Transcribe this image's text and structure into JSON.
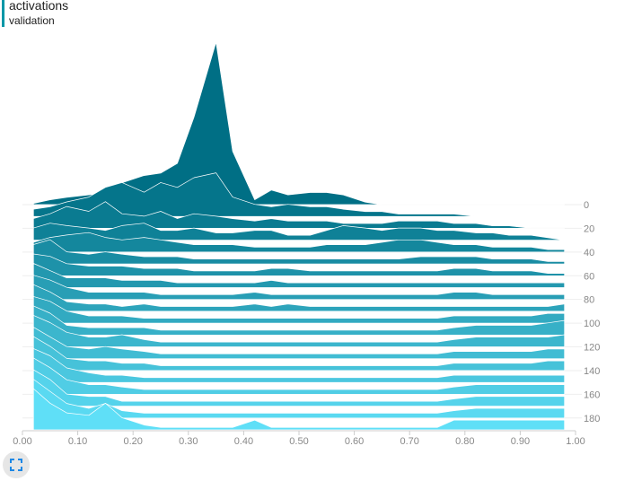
{
  "header": {
    "title": "activations",
    "subtitle": "validation"
  },
  "icons": {
    "expand": "fullscreen-icon"
  },
  "colors": {
    "back_series": "#006f85",
    "front_series": "#5fdff7",
    "outline": "#ffffff",
    "axis_label": "#888888",
    "header_bar": "#0097a7"
  },
  "chart_data": {
    "type": "area",
    "mode": "offset-histogram",
    "title": "activations",
    "subtitle": "validation",
    "x_ticks": [
      "0.00",
      "0.10",
      "0.20",
      "0.30",
      "0.40",
      "0.50",
      "0.60",
      "0.70",
      "0.80",
      "0.90",
      "1.00"
    ],
    "xlim": [
      0.0,
      1.0
    ],
    "step_ticks": [
      "0",
      "20",
      "40",
      "60",
      "80",
      "100",
      "120",
      "140",
      "160",
      "180"
    ],
    "step_range": [
      0,
      190
    ],
    "x": [
      0.02,
      0.05,
      0.08,
      0.12,
      0.15,
      0.18,
      0.22,
      0.25,
      0.28,
      0.31,
      0.35,
      0.38,
      0.42,
      0.45,
      0.48,
      0.52,
      0.55,
      0.58,
      0.62,
      0.65,
      0.68,
      0.72,
      0.75,
      0.78,
      0.82,
      0.85,
      0.88,
      0.92,
      0.95,
      0.98
    ],
    "series": [
      {
        "step": 0,
        "values": [
          0.05,
          0.2,
          0.3,
          0.4,
          0.5,
          0.9,
          1.2,
          1.3,
          1.7,
          3.6,
          6.7,
          2.2,
          0.2,
          0.6,
          0.4,
          0.5,
          0.5,
          0.4,
          0.1,
          0.0,
          0.0,
          0.0,
          0.0,
          0.0,
          0.0,
          0.0,
          0.0,
          0.0,
          0.0,
          0.0
        ]
      },
      {
        "step": 10,
        "values": [
          0.3,
          0.4,
          0.6,
          0.8,
          1.2,
          1.4,
          1.0,
          1.4,
          1.2,
          1.6,
          1.8,
          0.8,
          0.5,
          0.4,
          0.5,
          0.4,
          0.4,
          0.3,
          0.2,
          0.2,
          0.1,
          0.1,
          0.1,
          0.1,
          0.0,
          0.0,
          0.0,
          0.0,
          0.0,
          0.0
        ]
      },
      {
        "step": 20,
        "values": [
          0.4,
          0.6,
          0.9,
          0.7,
          1.1,
          0.6,
          0.5,
          0.7,
          0.4,
          0.6,
          0.5,
          0.4,
          0.3,
          0.4,
          0.3,
          0.3,
          0.3,
          0.2,
          0.2,
          0.2,
          0.3,
          0.3,
          0.3,
          0.2,
          0.2,
          0.1,
          0.1,
          0.0,
          0.0,
          0.0
        ]
      },
      {
        "step": 30,
        "values": [
          0.5,
          0.7,
          0.6,
          0.5,
          0.4,
          0.6,
          0.7,
          0.4,
          0.4,
          0.5,
          0.3,
          0.3,
          0.4,
          0.4,
          0.2,
          0.2,
          0.4,
          0.6,
          0.5,
          0.4,
          0.5,
          0.5,
          0.4,
          0.4,
          0.3,
          0.3,
          0.2,
          0.2,
          0.1,
          0.0
        ]
      },
      {
        "step": 40,
        "values": [
          0.4,
          0.6,
          0.7,
          0.8,
          0.6,
          0.5,
          0.6,
          0.5,
          0.4,
          0.3,
          0.3,
          0.3,
          0.2,
          0.2,
          0.2,
          0.2,
          0.3,
          0.3,
          0.3,
          0.4,
          0.5,
          0.5,
          0.4,
          0.3,
          0.3,
          0.2,
          0.2,
          0.2,
          0.1,
          0.1
        ]
      },
      {
        "step": 50,
        "values": [
          0.8,
          1.0,
          0.5,
          0.4,
          0.5,
          0.4,
          0.3,
          0.3,
          0.3,
          0.2,
          0.2,
          0.2,
          0.2,
          0.2,
          0.2,
          0.2,
          0.2,
          0.2,
          0.2,
          0.2,
          0.2,
          0.3,
          0.3,
          0.3,
          0.3,
          0.2,
          0.2,
          0.2,
          0.1,
          0.1
        ]
      },
      {
        "step": 60,
        "values": [
          0.9,
          0.8,
          0.5,
          0.4,
          0.4,
          0.4,
          0.3,
          0.3,
          0.3,
          0.2,
          0.2,
          0.2,
          0.2,
          0.3,
          0.3,
          0.2,
          0.2,
          0.2,
          0.2,
          0.2,
          0.2,
          0.2,
          0.2,
          0.3,
          0.3,
          0.2,
          0.2,
          0.2,
          0.1,
          0.1
        ]
      },
      {
        "step": 70,
        "values": [
          1.0,
          0.7,
          0.4,
          0.4,
          0.4,
          0.3,
          0.3,
          0.3,
          0.2,
          0.2,
          0.2,
          0.2,
          0.2,
          0.3,
          0.2,
          0.2,
          0.2,
          0.2,
          0.2,
          0.2,
          0.2,
          0.2,
          0.2,
          0.2,
          0.2,
          0.2,
          0.2,
          0.2,
          0.2,
          0.2
        ]
      },
      {
        "step": 80,
        "values": [
          1.0,
          0.8,
          0.5,
          0.3,
          0.3,
          0.3,
          0.3,
          0.2,
          0.2,
          0.2,
          0.2,
          0.2,
          0.3,
          0.2,
          0.2,
          0.2,
          0.2,
          0.2,
          0.2,
          0.2,
          0.2,
          0.2,
          0.2,
          0.3,
          0.3,
          0.2,
          0.2,
          0.2,
          0.2,
          0.2
        ]
      },
      {
        "step": 90,
        "values": [
          1.1,
          0.8,
          0.4,
          0.3,
          0.3,
          0.2,
          0.3,
          0.2,
          0.2,
          0.2,
          0.2,
          0.2,
          0.3,
          0.2,
          0.3,
          0.2,
          0.2,
          0.2,
          0.2,
          0.2,
          0.2,
          0.2,
          0.2,
          0.2,
          0.2,
          0.2,
          0.2,
          0.2,
          0.2,
          0.3
        ]
      },
      {
        "step": 100,
        "values": [
          1.1,
          0.9,
          0.5,
          0.3,
          0.3,
          0.3,
          0.2,
          0.2,
          0.2,
          0.2,
          0.2,
          0.2,
          0.2,
          0.2,
          0.2,
          0.2,
          0.2,
          0.2,
          0.2,
          0.2,
          0.2,
          0.2,
          0.2,
          0.3,
          0.3,
          0.3,
          0.3,
          0.3,
          0.4,
          0.4
        ]
      },
      {
        "step": 110,
        "values": [
          1.2,
          0.9,
          0.4,
          0.3,
          0.3,
          0.3,
          0.3,
          0.2,
          0.2,
          0.2,
          0.2,
          0.2,
          0.2,
          0.2,
          0.2,
          0.2,
          0.2,
          0.2,
          0.2,
          0.2,
          0.2,
          0.2,
          0.2,
          0.3,
          0.4,
          0.4,
          0.4,
          0.4,
          0.5,
          0.6
        ]
      },
      {
        "step": 120,
        "values": [
          1.3,
          1.0,
          0.6,
          0.4,
          0.4,
          0.5,
          0.3,
          0.2,
          0.2,
          0.2,
          0.2,
          0.2,
          0.2,
          0.2,
          0.2,
          0.2,
          0.2,
          0.2,
          0.2,
          0.2,
          0.2,
          0.2,
          0.2,
          0.3,
          0.4,
          0.4,
          0.4,
          0.4,
          0.4,
          0.5
        ]
      },
      {
        "step": 130,
        "values": [
          1.3,
          0.9,
          0.5,
          0.4,
          0.5,
          0.4,
          0.3,
          0.2,
          0.2,
          0.2,
          0.2,
          0.2,
          0.2,
          0.2,
          0.2,
          0.2,
          0.2,
          0.2,
          0.2,
          0.2,
          0.2,
          0.2,
          0.2,
          0.3,
          0.3,
          0.3,
          0.3,
          0.3,
          0.4,
          0.4
        ]
      },
      {
        "step": 140,
        "values": [
          1.4,
          1.0,
          0.5,
          0.4,
          0.4,
          0.3,
          0.3,
          0.2,
          0.2,
          0.2,
          0.2,
          0.2,
          0.2,
          0.2,
          0.2,
          0.2,
          0.2,
          0.2,
          0.2,
          0.2,
          0.2,
          0.2,
          0.2,
          0.3,
          0.3,
          0.3,
          0.3,
          0.3,
          0.4,
          0.4
        ]
      },
      {
        "step": 150,
        "values": [
          1.4,
          1.1,
          0.6,
          0.4,
          0.3,
          0.3,
          0.2,
          0.2,
          0.2,
          0.2,
          0.2,
          0.2,
          0.2,
          0.2,
          0.2,
          0.2,
          0.2,
          0.2,
          0.2,
          0.2,
          0.2,
          0.2,
          0.2,
          0.3,
          0.3,
          0.3,
          0.3,
          0.3,
          0.3,
          0.3
        ]
      },
      {
        "step": 160,
        "values": [
          1.5,
          1.1,
          0.6,
          0.4,
          0.4,
          0.3,
          0.2,
          0.2,
          0.2,
          0.2,
          0.2,
          0.2,
          0.2,
          0.2,
          0.2,
          0.2,
          0.2,
          0.2,
          0.2,
          0.2,
          0.2,
          0.2,
          0.2,
          0.3,
          0.4,
          0.4,
          0.4,
          0.4,
          0.4,
          0.4
        ]
      },
      {
        "step": 170,
        "values": [
          1.5,
          1.1,
          0.5,
          0.4,
          0.4,
          0.2,
          0.2,
          0.2,
          0.2,
          0.2,
          0.2,
          0.2,
          0.2,
          0.2,
          0.2,
          0.2,
          0.2,
          0.2,
          0.2,
          0.2,
          0.2,
          0.2,
          0.2,
          0.3,
          0.4,
          0.4,
          0.4,
          0.4,
          0.4,
          0.4
        ]
      },
      {
        "step": 180,
        "values": [
          1.6,
          1.1,
          0.6,
          0.4,
          0.6,
          0.3,
          0.2,
          0.2,
          0.2,
          0.2,
          0.2,
          0.2,
          0.2,
          0.2,
          0.2,
          0.2,
          0.2,
          0.2,
          0.2,
          0.2,
          0.2,
          0.2,
          0.2,
          0.3,
          0.4,
          0.4,
          0.4,
          0.4,
          0.4,
          0.4
        ]
      },
      {
        "step": 190,
        "values": [
          1.7,
          1.1,
          0.7,
          0.6,
          1.1,
          0.5,
          0.2,
          0.1,
          0.1,
          0.1,
          0.1,
          0.1,
          0.4,
          0.1,
          0.1,
          0.1,
          0.1,
          0.1,
          0.1,
          0.1,
          0.1,
          0.1,
          0.1,
          0.4,
          0.4,
          0.4,
          0.4,
          0.4,
          0.4,
          0.4
        ]
      }
    ]
  }
}
